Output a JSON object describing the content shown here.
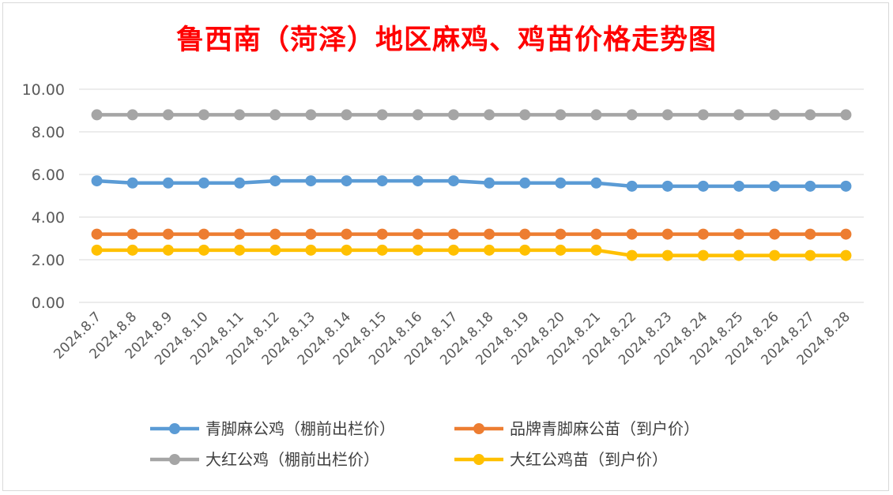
{
  "chart_data": {
    "type": "line",
    "title": "鲁西南（菏泽）地区麻鸡、鸡苗价格走势图",
    "xlabel": "",
    "ylabel": "",
    "ylim": [
      0,
      10
    ],
    "yticks": [
      "0.00",
      "2.00",
      "4.00",
      "6.00",
      "8.00",
      "10.00"
    ],
    "grid": true,
    "legend_position": "bottom",
    "categories": [
      "2024.8.7",
      "2024.8.8",
      "2024.8.9",
      "2024.8.10",
      "2024.8.11",
      "2024.8.12",
      "2024.8.13",
      "2024.8.14",
      "2024.8.15",
      "2024.8.16",
      "2024.8.17",
      "2024.8.18",
      "2024.8.19",
      "2024.8.20",
      "2024.8.21",
      "2024.8.22",
      "2024.8.23",
      "2024.8.24",
      "2024.8.25",
      "2024.8.26",
      "2024.8.27",
      "2024.8.28"
    ],
    "series": [
      {
        "name": "青脚麻公鸡（棚前出栏价）",
        "color": "#5b9bd5",
        "values": [
          5.7,
          5.6,
          5.6,
          5.6,
          5.6,
          5.7,
          5.7,
          5.7,
          5.7,
          5.7,
          5.7,
          5.6,
          5.6,
          5.6,
          5.6,
          5.45,
          5.45,
          5.45,
          5.45,
          5.45,
          5.45,
          5.45
        ]
      },
      {
        "name": "品牌青脚麻公苗（到户价）",
        "color": "#ed7d31",
        "values": [
          3.2,
          3.2,
          3.2,
          3.2,
          3.2,
          3.2,
          3.2,
          3.2,
          3.2,
          3.2,
          3.2,
          3.2,
          3.2,
          3.2,
          3.2,
          3.2,
          3.2,
          3.2,
          3.2,
          3.2,
          3.2,
          3.2
        ]
      },
      {
        "name": "大红公鸡（棚前出栏价）",
        "color": "#a5a5a5",
        "values": [
          8.8,
          8.8,
          8.8,
          8.8,
          8.8,
          8.8,
          8.8,
          8.8,
          8.8,
          8.8,
          8.8,
          8.8,
          8.8,
          8.8,
          8.8,
          8.8,
          8.8,
          8.8,
          8.8,
          8.8,
          8.8,
          8.8
        ]
      },
      {
        "name": "大红公鸡苗（到户价）",
        "color": "#ffc000",
        "values": [
          2.45,
          2.45,
          2.45,
          2.45,
          2.45,
          2.45,
          2.45,
          2.45,
          2.45,
          2.45,
          2.45,
          2.45,
          2.45,
          2.45,
          2.45,
          2.2,
          2.2,
          2.2,
          2.2,
          2.2,
          2.2,
          2.2
        ]
      }
    ]
  }
}
